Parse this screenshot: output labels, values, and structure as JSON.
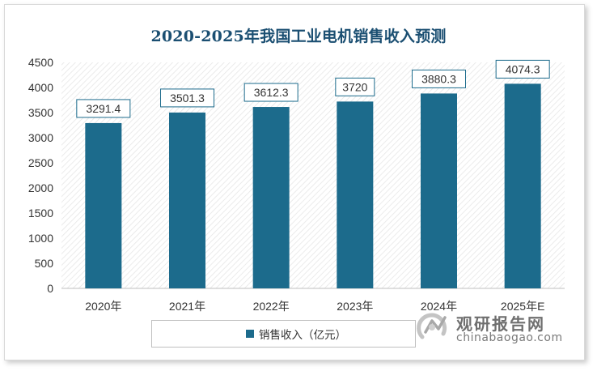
{
  "chart_data": {
    "type": "bar",
    "title": "2020-2025年我国工业电机销售收入预测",
    "categories": [
      "2020年",
      "2021年",
      "2022年",
      "2023年",
      "2024年",
      "2025年E"
    ],
    "series": [
      {
        "name": "销售收入（亿元）",
        "values": [
          3291.4,
          3501.3,
          3612.3,
          3720,
          3880.3,
          4074.3
        ]
      }
    ],
    "data_labels": [
      "3291.4",
      "3501.3",
      "3612.3",
      "3720",
      "3880.3",
      "4074.3"
    ],
    "ylim": [
      0,
      4500
    ],
    "yticks": [
      0,
      500,
      1000,
      1500,
      2000,
      2500,
      3000,
      3500,
      4000,
      4500
    ],
    "xlabel": "",
    "ylabel": "",
    "grid": false,
    "plot_background": "diagonal-hatch",
    "legend_position": "bottom",
    "bar_color": "#1c6b8c"
  },
  "watermark": {
    "name": "观研报告网",
    "url": "chinabaogao.com"
  },
  "colors": {
    "title": "#1b4f72",
    "bar": "#1c6b8c",
    "label_border": "#1c6b8c"
  }
}
